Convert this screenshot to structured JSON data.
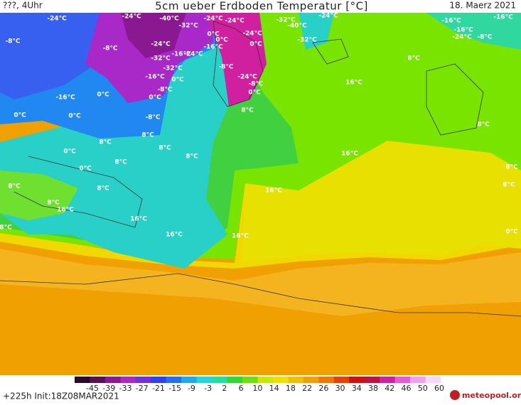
{
  "header": {
    "left": "???, 4Uhr",
    "title": "5cm ueber Erdboden Temperatur [°C]",
    "right": "18. Maerz 2021"
  },
  "map": {
    "labels": [
      "-24°C",
      "-24°C",
      "-40°C",
      "-32°C",
      "-24°C",
      "-24°C",
      "-16°C",
      "0°C",
      "0°C",
      "-24°C",
      "-32°C",
      "-40°C",
      "-24°C",
      "-16°C",
      "-16°C",
      "-8°C",
      "-8°C",
      "-24°C",
      "-32°C",
      "-24°C",
      "-16°C",
      "0°C",
      "-32°C",
      "-16°C",
      "-8°C",
      "-24°C",
      "-8°C",
      "-32°C",
      "-8°C",
      "-16°C",
      "-24°C",
      "-8°C",
      "0°C",
      "-8°C",
      "-16°C",
      "0°C",
      "0°C",
      "0°C",
      "0°C",
      "8°C",
      "0°C",
      "8°C",
      "8°C",
      "8°C",
      "0°C",
      "0°C",
      "8°C",
      "8°C",
      "8°C",
      "8°C",
      "8°C",
      "16°C",
      "8°C",
      "16°C",
      "16°C",
      "16°C",
      "16°C",
      "16°C",
      "16°C",
      "8°C",
      "8°C",
      "8°C",
      "8°C",
      "0°C"
    ]
  },
  "colorbar": {
    "ticks": [
      -45,
      -39,
      -33,
      -27,
      -21,
      -15,
      -9,
      -3,
      2,
      6,
      10,
      14,
      18,
      22,
      26,
      30,
      34,
      38,
      42,
      46,
      50,
      60
    ],
    "colors": [
      "#2a0a2a",
      "#5a1050",
      "#8a1890",
      "#a828c8",
      "#7030e0",
      "#3040f0",
      "#2070f0",
      "#20a8f0",
      "#20d8d8",
      "#20e0a0",
      "#30d830",
      "#70e000",
      "#c8e800",
      "#f0e000",
      "#f0c000",
      "#f0a000",
      "#f07800",
      "#e84000",
      "#d01010",
      "#c01040",
      "#d020a0",
      "#e858d8",
      "#f0a0f0",
      "#f8d8f8"
    ]
  },
  "footer": {
    "left": "+225h Init:18Z08MAR2021",
    "logo": "meteopool.org"
  }
}
